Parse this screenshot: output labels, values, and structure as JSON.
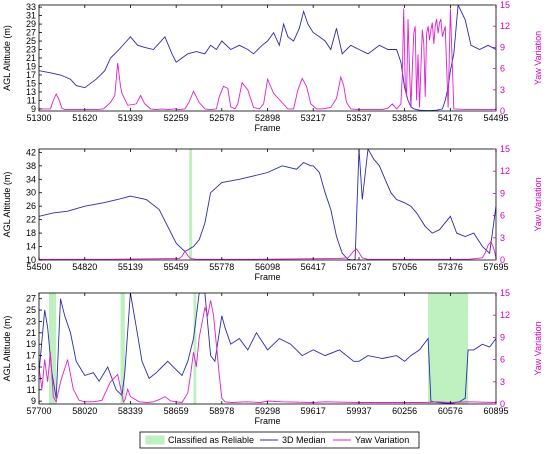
{
  "colors": {
    "median": "#2b2bb0",
    "yaw": "#e020d0",
    "yaw_axis": "#d000c0",
    "reliable_fill": "#bff0bf"
  },
  "chart_data": [
    {
      "type": "line",
      "xlabel": "Frame",
      "ylabel_left": "AGL Altitude (m)",
      "ylabel_right": "Yaw Variation",
      "xlim": [
        51300,
        54495
      ],
      "xticks": [
        51300,
        51620,
        51939,
        52259,
        52578,
        52898,
        53217,
        53537,
        53856,
        54176,
        54495
      ],
      "ylim": [
        8.5,
        33.5
      ],
      "yticks": [
        9,
        11,
        13,
        15,
        17,
        19,
        21,
        23,
        25,
        27,
        29,
        31,
        33
      ],
      "ylim_right": [
        0,
        15
      ],
      "yticks_right": [
        0,
        3,
        6,
        9,
        12,
        15
      ],
      "reliable_spans": [],
      "series": [
        {
          "name": "3D Median",
          "axis": "left",
          "x": [
            51300,
            51380,
            51450,
            51520,
            51560,
            51620,
            51700,
            51760,
            51800,
            51860,
            51939,
            51990,
            52040,
            52100,
            52180,
            52230,
            52259,
            52300,
            52340,
            52400,
            52460,
            52500,
            52540,
            52578,
            52640,
            52700,
            52760,
            52800,
            52860,
            52898,
            52940,
            52980,
            53010,
            53040,
            53080,
            53120,
            53150,
            53180,
            53217,
            53260,
            53300,
            53340,
            53380,
            53420,
            53480,
            53537,
            53600,
            53680,
            53740,
            53800,
            53830,
            53856,
            53880,
            53900,
            53920,
            53960,
            54000,
            54040,
            54080,
            54120,
            54140,
            54160,
            54176,
            54200,
            54230,
            54280,
            54320,
            54380,
            54440,
            54495
          ],
          "values": [
            18,
            17.5,
            17,
            16,
            14.5,
            14,
            16,
            18,
            21,
            23,
            26,
            24,
            23.5,
            23,
            26,
            22,
            20,
            21,
            22,
            22.5,
            22,
            24,
            23,
            25,
            23,
            24,
            23,
            22,
            24,
            25,
            27,
            24,
            29,
            26,
            25,
            28,
            32,
            29,
            27,
            26,
            25,
            23,
            28,
            22,
            24,
            23,
            22,
            24,
            23,
            23,
            20,
            14,
            11,
            9.5,
            9,
            8.7,
            8.6,
            8.6,
            8.7,
            9,
            11,
            14,
            18,
            22,
            33.5,
            30,
            24,
            23,
            24,
            23
          ]
        },
        {
          "name": "Yaw Variation",
          "axis": "right",
          "x": [
            51300,
            51380,
            51400,
            51420,
            51440,
            51460,
            51480,
            51700,
            51750,
            51800,
            51830,
            51850,
            51870,
            51880,
            51920,
            51980,
            52010,
            52040,
            52080,
            52120,
            52160,
            52200,
            52250,
            52259,
            52280,
            52320,
            52350,
            52380,
            52420,
            52460,
            52500,
            52540,
            52560,
            52590,
            52620,
            52640,
            52670,
            52690,
            52720,
            52760,
            52800,
            52840,
            52870,
            52898,
            52940,
            53040,
            53080,
            53110,
            53140,
            53170,
            53200,
            53240,
            53280,
            53340,
            53380,
            53410,
            53430,
            53450,
            53480,
            53537,
            53700,
            53740,
            53770,
            53800,
            53830,
            53840,
            53850,
            53860,
            53870,
            53880,
            53890,
            53900,
            53910,
            53920,
            53930,
            53940,
            53950,
            53960,
            53970,
            53980,
            53990,
            54000,
            54010,
            54020,
            54030,
            54040,
            54050,
            54060,
            54070,
            54080,
            54090,
            54100,
            54110,
            54120,
            54140,
            54160,
            54176,
            54200,
            54300,
            54495
          ],
          "values": [
            0.3,
            0.3,
            1.5,
            2.4,
            1.6,
            0.4,
            0.2,
            0.2,
            0.3,
            1.2,
            2.2,
            6.8,
            3.5,
            2.5,
            0.8,
            1.0,
            2.2,
            1.0,
            0.3,
            0.2,
            0.3,
            0.2,
            0.3,
            0.3,
            0.2,
            0.3,
            1.3,
            2.8,
            1.2,
            0.3,
            0.2,
            0.3,
            2.0,
            3.5,
            3.2,
            0.6,
            0.3,
            1.0,
            4.0,
            3.0,
            0.5,
            0.3,
            1.0,
            4.5,
            2.5,
            0.3,
            0.3,
            3.0,
            4.6,
            3.5,
            1.0,
            0.3,
            0.3,
            0.5,
            1.8,
            4.8,
            3.6,
            1.2,
            0.3,
            0.2,
            0.2,
            0.4,
            1.0,
            0.3,
            1.0,
            5.0,
            14.5,
            4.0,
            2.0,
            13.0,
            6.0,
            0.5,
            6.0,
            11.0,
            12.0,
            1.5,
            8.0,
            0.5,
            6.0,
            11.5,
            9.5,
            2.0,
            11.0,
            12.0,
            10.0,
            11.5,
            12.5,
            9.5,
            12.0,
            13.0,
            11.0,
            12.5,
            13.0,
            10.5,
            12.0,
            0.5,
            14.5,
            0.3,
            0.2,
            0.2
          ]
        }
      ]
    },
    {
      "type": "line",
      "xlabel": "Frame",
      "ylabel_left": "AGL Altitude (m)",
      "ylabel_right": "Yaw Variation",
      "xlim": [
        54500,
        57695
      ],
      "xticks": [
        54500,
        54820,
        55139,
        55459,
        55778,
        56098,
        56417,
        56737,
        57056,
        57376,
        57695
      ],
      "ylim": [
        10,
        43
      ],
      "yticks": [
        10,
        14,
        18,
        22,
        26,
        30,
        34,
        38,
        42
      ],
      "ylim_right": [
        0,
        15
      ],
      "yticks_right": [
        0,
        3,
        6,
        9,
        12,
        15
      ],
      "reliable_spans": [
        [
          55550,
          55570
        ]
      ],
      "series": [
        {
          "name": "3D Median",
          "axis": "left",
          "x": [
            54500,
            54600,
            54700,
            54820,
            54950,
            55050,
            55139,
            55250,
            55340,
            55400,
            55459,
            55520,
            55580,
            55620,
            55660,
            55700,
            55778,
            55900,
            56000,
            56098,
            56200,
            56300,
            56350,
            56400,
            56417,
            56460,
            56500,
            56540,
            56580,
            56620,
            56660,
            56690,
            56710,
            56737,
            56760,
            56800,
            56840,
            56880,
            56920,
            56960,
            57000,
            57056,
            57100,
            57140,
            57200,
            57250,
            57300,
            57376,
            57420,
            57480,
            57540,
            57600,
            57650,
            57695
          ],
          "values": [
            23,
            24,
            24.5,
            26,
            27,
            28,
            29,
            28,
            25,
            20,
            15,
            12.5,
            14,
            16,
            21,
            30,
            33,
            34,
            35,
            36,
            38,
            37,
            39,
            38,
            38,
            36,
            30,
            25,
            17,
            12,
            10.2,
            10,
            10.2,
            43,
            28,
            43,
            40,
            38,
            34,
            30,
            28,
            27,
            26,
            24,
            20,
            18,
            19,
            23,
            18,
            17,
            18,
            14,
            12,
            26
          ]
        },
        {
          "name": "Yaw Variation",
          "axis": "right",
          "x": [
            54500,
            55000,
            55480,
            55500,
            55520,
            55540,
            55560,
            55600,
            56000,
            56600,
            56660,
            56700,
            56720,
            56737,
            56760,
            56800,
            56850,
            57000,
            57500,
            57600,
            57620,
            57640,
            57660,
            57680,
            57695
          ],
          "values": [
            0.1,
            0.1,
            0.2,
            0.5,
            1.2,
            0.6,
            0.2,
            0.1,
            0.1,
            0.2,
            0.3,
            1.2,
            1.5,
            1.0,
            0.3,
            0.1,
            0.1,
            0.1,
            0.1,
            0.3,
            1.0,
            2.0,
            2.5,
            1.5,
            0.3
          ]
        }
      ]
    },
    {
      "type": "line",
      "xlabel": "Frame",
      "ylabel_left": "AGL Altitude (m)",
      "ylabel_right": "Yaw Variation",
      "xlim": [
        57700,
        60895
      ],
      "xticks": [
        57700,
        58020,
        58339,
        58659,
        58978,
        59298,
        59617,
        59937,
        60256,
        60576,
        60895
      ],
      "ylim": [
        8.5,
        28
      ],
      "yticks": [
        9,
        11,
        13,
        15,
        17,
        19,
        21,
        23,
        25,
        27
      ],
      "ylim_right": [
        0,
        15
      ],
      "yticks_right": [
        0,
        3,
        6,
        9,
        12,
        15
      ],
      "reliable_spans": [
        [
          57770,
          57820
        ],
        [
          58270,
          58300
        ],
        [
          58780,
          58800
        ],
        [
          60420,
          60700
        ]
      ],
      "series": [
        {
          "name": "3D Median",
          "axis": "left",
          "x": [
            57700,
            57740,
            57760,
            57790,
            57820,
            57850,
            57880,
            57920,
            57960,
            58020,
            58080,
            58120,
            58180,
            58240,
            58280,
            58300,
            58339,
            58380,
            58420,
            58470,
            58520,
            58560,
            58600,
            58659,
            58700,
            58740,
            58780,
            58820,
            58860,
            58900,
            58930,
            58978,
            59000,
            59040,
            59100,
            59160,
            59220,
            59298,
            59380,
            59460,
            59540,
            59617,
            59700,
            59800,
            59900,
            59937,
            60000,
            60100,
            60200,
            60256,
            60300,
            60360,
            60420,
            60440,
            60480,
            60520,
            60560,
            60600,
            60640,
            60680,
            60700,
            60740,
            60800,
            60850,
            60895
          ],
          "values": [
            14,
            25,
            22,
            14,
            9.5,
            27,
            24,
            21,
            16,
            13.5,
            14,
            12.5,
            15,
            11,
            10,
            14,
            28,
            22,
            16,
            13,
            14,
            15,
            16,
            14.5,
            13.5,
            16,
            20,
            28,
            28,
            17,
            16,
            24,
            22,
            19,
            20,
            18,
            21,
            18,
            20,
            19,
            17,
            18,
            17,
            18,
            16,
            16,
            17,
            16.5,
            17,
            16,
            17,
            18,
            20,
            9,
            8.8,
            8.7,
            8.6,
            8.7,
            8.9,
            9.5,
            18,
            18,
            19,
            18.5,
            20
          ]
        },
        {
          "name": "Yaw Variation",
          "axis": "right",
          "x": [
            57700,
            57720,
            57740,
            57760,
            57780,
            57800,
            57820,
            57850,
            57900,
            57940,
            57980,
            58020,
            58080,
            58140,
            58200,
            58250,
            58290,
            58300,
            58320,
            58340,
            58400,
            58460,
            58500,
            58540,
            58580,
            58620,
            58659,
            58700,
            58740,
            58760,
            58780,
            58800,
            58820,
            58840,
            58860,
            58880,
            58900,
            58920,
            58940,
            58960,
            58978,
            59000,
            59050,
            59150,
            59250,
            59298,
            59400,
            59617,
            59700,
            59937,
            60100,
            60256,
            60400,
            60480,
            60576,
            60700,
            60895
          ],
          "values": [
            5.0,
            2.0,
            6.0,
            3.0,
            7.0,
            1.0,
            0.3,
            3.0,
            6.0,
            2.0,
            0.5,
            0.3,
            0.3,
            0.5,
            3.0,
            4.0,
            0.3,
            0.5,
            2.0,
            1.0,
            0.3,
            0.2,
            0.3,
            0.6,
            1.0,
            0.4,
            0.3,
            0.2,
            1.5,
            4.0,
            7.0,
            5.0,
            9.0,
            11.0,
            13.0,
            12.0,
            14.0,
            12.0,
            8.0,
            4.0,
            0.8,
            0.3,
            0.2,
            0.3,
            0.2,
            0.4,
            0.3,
            0.2,
            0.3,
            0.2,
            0.2,
            0.2,
            0.2,
            0.3,
            0.2,
            0.3,
            0.2
          ]
        }
      ]
    }
  ],
  "legend": {
    "items": [
      {
        "label": "Classified as Reliable",
        "kind": "patch"
      },
      {
        "label": "3D Median",
        "kind": "median"
      },
      {
        "label": "Yaw Variation",
        "kind": "yaw"
      }
    ]
  }
}
